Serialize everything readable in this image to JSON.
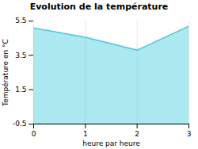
{
  "chart_data": {
    "type": "area",
    "title": "Evolution de la température",
    "xlabel": "heure par heure",
    "ylabel": "Température en °C",
    "x": [
      0,
      1,
      2,
      3
    ],
    "values": [
      5.1,
      4.55,
      3.8,
      5.2
    ],
    "color": "#44ccdd",
    "xlim": [
      0,
      3
    ],
    "ylim": [
      -0.5,
      5.5
    ],
    "xticks": [
      0,
      1,
      2,
      3
    ],
    "yticks": [
      -0.5,
      1.5,
      3.5,
      5.5
    ],
    "grid": "x"
  }
}
